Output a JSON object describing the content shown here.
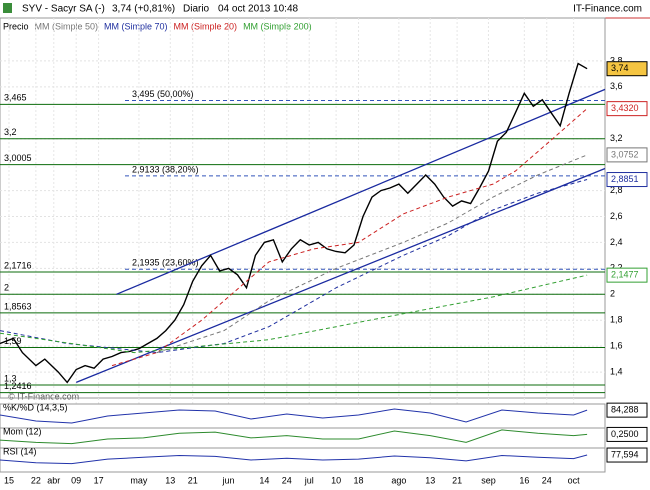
{
  "chart_data": [
    {
      "type": "line",
      "title": "SYV - Sacyr SA (-)",
      "quote": "3,74 (+0,81%)",
      "period": "Diario",
      "date": "04 oct 2013 10:48",
      "brand": "IT-Finance.com",
      "watermark": "© IT-Finance.com",
      "xlim": [
        0,
        135
      ],
      "xticks": [
        {
          "value": 2,
          "label": "15"
        },
        {
          "value": 8,
          "label": "22"
        },
        {
          "value": 12,
          "label": "abr"
        },
        {
          "value": 17,
          "label": "09"
        },
        {
          "value": 22,
          "label": "17"
        },
        {
          "value": 31,
          "label": "may"
        },
        {
          "value": 38,
          "label": "13"
        },
        {
          "value": 43,
          "label": "21"
        },
        {
          "value": 51,
          "label": "jun"
        },
        {
          "value": 59,
          "label": "14"
        },
        {
          "value": 64,
          "label": "24"
        },
        {
          "value": 69,
          "label": "jul"
        },
        {
          "value": 75,
          "label": "10"
        },
        {
          "value": 80,
          "label": "18"
        },
        {
          "value": 89,
          "label": "ago"
        },
        {
          "value": 96,
          "label": "13"
        },
        {
          "value": 102,
          "label": "21"
        },
        {
          "value": 109,
          "label": "sep"
        },
        {
          "value": 117,
          "label": "16"
        },
        {
          "value": 122,
          "label": "24"
        },
        {
          "value": 128,
          "label": "oct"
        }
      ],
      "ylim": [
        1.2,
        4.0
      ],
      "yticks": [
        {
          "value": 3.8,
          "label": "3,8"
        },
        {
          "value": 3.6,
          "label": "3,6"
        },
        {
          "value": 3.2,
          "label": "3,2"
        },
        {
          "value": 2.8,
          "label": "2,8"
        },
        {
          "value": 2.6,
          "label": "2,6"
        },
        {
          "value": 2.4,
          "label": "2,4"
        },
        {
          "value": 2.2,
          "label": "2,2"
        },
        2,
        {
          "value": 1.8,
          "label": "1,8"
        },
        {
          "value": 1.6,
          "label": "1,6"
        },
        {
          "value": 1.4,
          "label": "1,4"
        }
      ],
      "grid": true,
      "series": [
        {
          "name": "Precio",
          "color": "#000000",
          "last": {
            "value": 3.74,
            "label": "3,74"
          },
          "x": [
            0,
            3,
            5,
            8,
            10,
            13,
            15,
            17,
            19,
            21,
            23,
            25,
            27,
            29,
            31,
            33,
            35,
            37,
            39,
            41,
            43,
            45,
            47,
            49,
            51,
            53,
            55,
            57,
            59,
            61,
            63,
            65,
            67,
            69,
            71,
            73,
            75,
            77,
            79,
            81,
            83,
            85,
            87,
            89,
            91,
            93,
            95,
            97,
            99,
            101,
            103,
            105,
            107,
            109,
            111,
            113,
            115,
            117,
            119,
            121,
            123,
            125,
            127,
            129,
            131
          ],
          "values": [
            1.62,
            1.66,
            1.55,
            1.45,
            1.5,
            1.4,
            1.32,
            1.42,
            1.45,
            1.43,
            1.5,
            1.52,
            1.55,
            1.56,
            1.58,
            1.62,
            1.66,
            1.72,
            1.8,
            1.92,
            2.1,
            2.22,
            2.3,
            2.18,
            2.2,
            2.15,
            2.05,
            2.3,
            2.4,
            2.42,
            2.25,
            2.35,
            2.42,
            2.38,
            2.4,
            2.35,
            2.33,
            2.32,
            2.38,
            2.6,
            2.75,
            2.8,
            2.82,
            2.85,
            2.78,
            2.85,
            2.92,
            2.85,
            2.75,
            2.68,
            2.72,
            2.7,
            2.82,
            2.95,
            3.18,
            3.25,
            3.4,
            3.55,
            3.45,
            3.5,
            3.4,
            3.3,
            3.55,
            3.78,
            3.74
          ]
        },
        {
          "name": "MM (Simple 50)",
          "color": "#777777",
          "last": {
            "value": 3.0752,
            "label": "3,0752"
          },
          "x": [
            35,
            50,
            60,
            75,
            90,
            100,
            110,
            120,
            131
          ],
          "values": [
            1.55,
            1.72,
            1.95,
            2.2,
            2.4,
            2.55,
            2.75,
            2.92,
            3.0752
          ]
        },
        {
          "name": "MM (Simple 70)",
          "color": "#1f2f9f",
          "last": {
            "value": 2.8851,
            "label": "2,8851"
          },
          "x": [
            0,
            15,
            35,
            50,
            60,
            75,
            90,
            100,
            110,
            120,
            131
          ],
          "values": [
            1.72,
            1.62,
            1.55,
            1.62,
            1.75,
            2.05,
            2.3,
            2.45,
            2.65,
            2.78,
            2.8851
          ]
        },
        {
          "name": "MM (Simple 20)",
          "color": "#cc2222",
          "last": {
            "value": 3.432,
            "label": "3,4320"
          },
          "x": [
            25,
            35,
            45,
            55,
            60,
            70,
            80,
            90,
            100,
            110,
            115,
            120,
            125,
            131
          ],
          "values": [
            1.45,
            1.55,
            1.8,
            2.1,
            2.25,
            2.35,
            2.4,
            2.62,
            2.75,
            2.85,
            2.95,
            3.1,
            3.25,
            3.432
          ]
        },
        {
          "name": "MM (Simple 200)",
          "color": "#33a033",
          "last": {
            "value": 2.1477,
            "label": "2,1477"
          },
          "x": [
            0,
            30,
            60,
            90,
            110,
            131
          ],
          "values": [
            1.7,
            1.55,
            1.65,
            1.85,
            1.98,
            2.1477
          ]
        }
      ],
      "levels": [
        {
          "value": 3.465,
          "label": "3,465"
        },
        {
          "value": 3.2,
          "label": "3,2"
        },
        {
          "value": 3.0005,
          "label": "3,0005"
        },
        {
          "value": 2.1716,
          "label": "2,1716"
        },
        {
          "value": 2,
          "label": "2"
        },
        {
          "value": 1.8563,
          "label": "1,8563"
        },
        {
          "value": 1.59,
          "label": "1,59"
        },
        {
          "value": 1.3,
          "label": "1,3"
        },
        {
          "value": 1.2416,
          "label": "1,2416"
        }
      ],
      "fibonacci": [
        {
          "value": 3.495,
          "label": "3,495 (50,00%)"
        },
        {
          "value": 2.9133,
          "label": "2,9133 (38,20%)"
        },
        {
          "value": 2.1935,
          "label": "2,1935 (23,60%)"
        }
      ],
      "trendlines": [
        {
          "x": [
            17,
            135
          ],
          "values": [
            1.32,
            2.97
          ]
        },
        {
          "x": [
            26,
            135
          ],
          "values": [
            2.0,
            3.58
          ]
        }
      ]
    },
    {
      "type": "line",
      "title": "%K/%D (14,3,5)",
      "color": "#2233aa",
      "ylim": [
        0,
        100
      ],
      "last": {
        "value": 84.288,
        "label": "84,288"
      },
      "x": [
        0,
        8,
        16,
        24,
        32,
        40,
        48,
        56,
        64,
        72,
        80,
        88,
        96,
        104,
        112,
        120,
        128,
        131
      ],
      "values": [
        60,
        30,
        20,
        55,
        70,
        85,
        80,
        40,
        65,
        45,
        60,
        90,
        70,
        25,
        85,
        70,
        60,
        84.288
      ]
    },
    {
      "type": "line",
      "title": "Mom (12)",
      "color": "#2e8b2e",
      "ylim": [
        -0.3,
        0.4
      ],
      "last": {
        "value": 0.25,
        "label": "0,2500"
      },
      "x": [
        0,
        8,
        16,
        24,
        32,
        40,
        48,
        56,
        64,
        72,
        80,
        88,
        96,
        104,
        112,
        120,
        128,
        131
      ],
      "values": [
        0,
        -0.1,
        -0.15,
        0.05,
        0.1,
        0.3,
        0.35,
        0.1,
        0.2,
        0.05,
        0.05,
        0.4,
        0.2,
        -0.1,
        0.45,
        0.3,
        0.2,
        0.25
      ]
    },
    {
      "type": "line",
      "title": "RSI (14)",
      "color": "#2233aa",
      "ylim": [
        0,
        100
      ],
      "last": {
        "value": 77.594,
        "label": "77,594"
      },
      "x": [
        0,
        8,
        16,
        24,
        32,
        40,
        48,
        56,
        64,
        72,
        80,
        88,
        96,
        104,
        112,
        120,
        128,
        131
      ],
      "values": [
        50,
        35,
        30,
        55,
        65,
        75,
        70,
        50,
        60,
        50,
        55,
        72,
        62,
        45,
        75,
        65,
        58,
        77.594
      ]
    }
  ]
}
